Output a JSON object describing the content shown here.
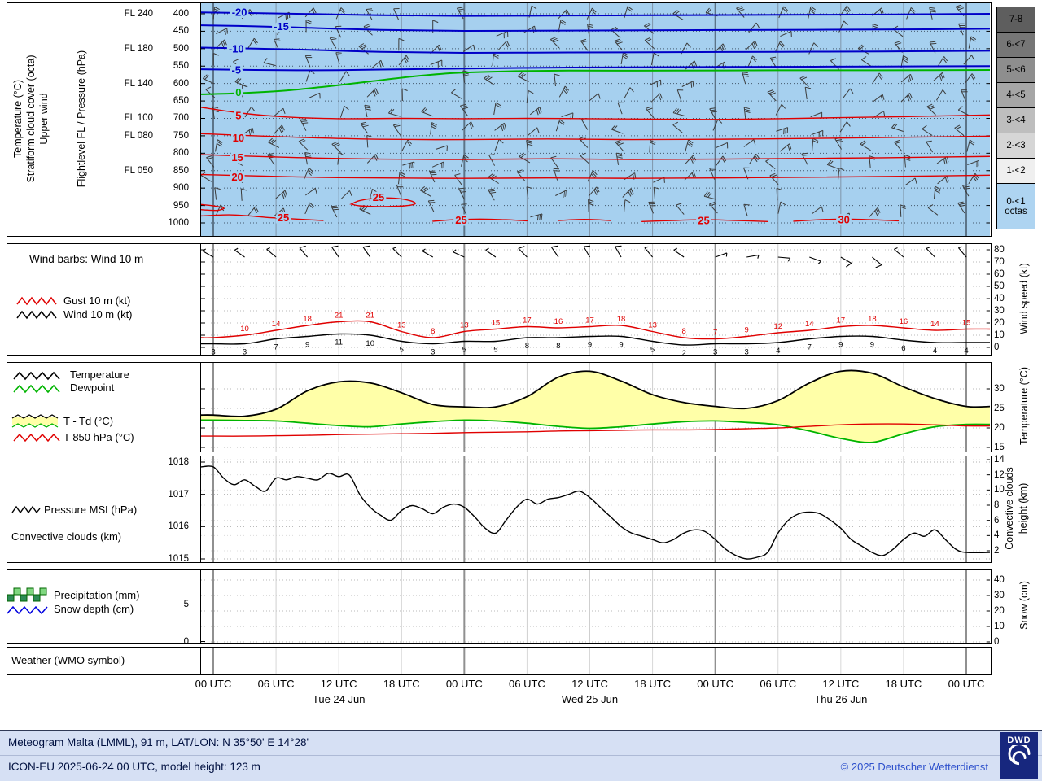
{
  "colors": {
    "plot_blue_bg": "#a6d0ef",
    "contour_blue": "#0000c8",
    "contour_green": "#00b400",
    "contour_red": "#e00000",
    "gust_red": "#e00000",
    "snow_blue": "#0000e0",
    "ttd_yellow": "#ffffa8",
    "footer_bg": "#d6e0f4",
    "copyright_blue": "#2d50cc",
    "dwd_navy": "#17277e"
  },
  "upper_panel": {
    "rotated_labels": [
      "Temperature (°C)",
      "Stratiform cloud cover (octa)",
      "Upper wind"
    ],
    "axis_label": "Flightlevel FL / Pressure (hPa)",
    "flight_levels": [
      {
        "label": "FL 240",
        "p": 400
      },
      {
        "label": "FL 180",
        "p": 500
      },
      {
        "label": "FL 140",
        "p": 600
      },
      {
        "label": "FL 100",
        "p": 700
      },
      {
        "label": "FL 080",
        "p": 750
      },
      {
        "label": "FL 050",
        "p": 850
      }
    ],
    "pressure_ticks": [
      400,
      450,
      500,
      550,
      600,
      650,
      700,
      750,
      800,
      850,
      900,
      950,
      1000
    ]
  },
  "octas_legend": {
    "unit": "octas",
    "cells": [
      {
        "label": "7-8",
        "color": "#5e5e5e"
      },
      {
        "label": "6-<7",
        "color": "#767676"
      },
      {
        "label": "5-<6",
        "color": "#8e8e8e"
      },
      {
        "label": "4-<5",
        "color": "#a6a6a6"
      },
      {
        "label": "3-<4",
        "color": "#bebebe"
      },
      {
        "label": "2-<3",
        "color": "#d6d6d6"
      },
      {
        "label": "1-<2",
        "color": "#efefef"
      },
      {
        "label": "0-<1",
        "color": "#aed4f1"
      }
    ]
  },
  "wind_panel": {
    "title": "Wind barbs: Wind 10 m",
    "legend": [
      {
        "label": "Gust 10 m (kt)",
        "color": "#e00000"
      },
      {
        "label": "Wind 10 m (kt)",
        "color": "#000000"
      }
    ],
    "axis_label": "Wind speed (kt)",
    "ticks": [
      80,
      70,
      60,
      50,
      40,
      30,
      20,
      10,
      0
    ]
  },
  "temp_panel": {
    "legend": [
      {
        "label": "Temperature",
        "color": "#000000"
      },
      {
        "label": "Dewpoint",
        "color": "#00b400"
      },
      {
        "label": "T - Td (°C)",
        "color": "#ffffa8"
      },
      {
        "label": "T 850 hPa (°C)",
        "color": "#e00000"
      }
    ],
    "axis_label": "Temperature (°C)",
    "ticks": [
      30,
      25,
      20,
      15
    ]
  },
  "pressure_panel": {
    "legend": [
      "Pressure MSL(hPa)",
      "Convective clouds (km)"
    ],
    "left_ticks": [
      1018,
      1017,
      1016,
      1015
    ],
    "axis_label_right_1": "Convective clouds",
    "axis_label_right_2": "height (km)",
    "right_ticks": [
      14,
      12,
      10,
      8,
      6,
      4,
      2
    ]
  },
  "precip_panel": {
    "legend": [
      {
        "label": "Precipitation (mm)"
      },
      {
        "label": "Snow depth (cm)"
      }
    ],
    "left_ticks": [
      5,
      0
    ],
    "axis_label": "Snow (cm)",
    "right_ticks": [
      40,
      30,
      20,
      10,
      0
    ]
  },
  "weather_panel": {
    "label": "Weather (WMO symbol)"
  },
  "time_axis": {
    "utc_labels": [
      "00 UTC",
      "06 UTC",
      "12 UTC",
      "18 UTC",
      "00 UTC",
      "06 UTC",
      "12 UTC",
      "18 UTC",
      "00 UTC",
      "06 UTC",
      "12 UTC",
      "18 UTC",
      "00 UTC"
    ],
    "day_labels": [
      {
        "label": "Tue 24 Jun",
        "t": 12
      },
      {
        "label": "Wed 25 Jun",
        "t": 36
      },
      {
        "label": "Thu 26 Jun",
        "t": 60
      }
    ]
  },
  "footer": {
    "line1": "Meteogram Malta (LMML), 91 m, LAT/LON: N 35°50' E 14°28'",
    "line2": "ICON-EU 2025-06-24 00 UTC, model height: 123 m",
    "copyright": "© 2025 Deutscher Wetterdienst",
    "logo_text": "DWD"
  },
  "chart_data": {
    "type": "meteogram",
    "time_range_hours": {
      "start": 0,
      "end": 72,
      "label_step": 6
    },
    "upper_air_contours": [
      {
        "label": "-20",
        "color": "#0000c8",
        "width": 2,
        "label_t": 2.5,
        "label_p": 397,
        "points": [
          [
            -1.2,
            396
          ],
          [
            4,
            398
          ],
          [
            10,
            401
          ],
          [
            16,
            404
          ],
          [
            24,
            406
          ],
          [
            34,
            405
          ],
          [
            44,
            404
          ],
          [
            54,
            403
          ],
          [
            64,
            402
          ],
          [
            74.6,
            400
          ]
        ]
      },
      {
        "label": "-15",
        "color": "#0000c8",
        "width": 2,
        "label_t": 6.5,
        "label_p": 437,
        "points": [
          [
            -1.2,
            433
          ],
          [
            4,
            436
          ],
          [
            10,
            441
          ],
          [
            16,
            446
          ],
          [
            24,
            449
          ],
          [
            34,
            448
          ],
          [
            44,
            447
          ],
          [
            54,
            446
          ],
          [
            64,
            445
          ],
          [
            74.6,
            443
          ]
        ]
      },
      {
        "label": "-10",
        "color": "#0000c8",
        "width": 2,
        "label_t": 2.2,
        "label_p": 501,
        "points": [
          [
            -1.2,
            497
          ],
          [
            4,
            500
          ],
          [
            10,
            504
          ],
          [
            16,
            509
          ],
          [
            24,
            512
          ],
          [
            34,
            511
          ],
          [
            44,
            510
          ],
          [
            54,
            509
          ],
          [
            64,
            508
          ],
          [
            74.6,
            506
          ]
        ]
      },
      {
        "label": "-5",
        "color": "#0000c8",
        "width": 2,
        "label_t": 2.2,
        "label_p": 562,
        "points": [
          [
            -1.2,
            559
          ],
          [
            4,
            561
          ],
          [
            10,
            562
          ],
          [
            16,
            560
          ],
          [
            24,
            557
          ],
          [
            34,
            554
          ],
          [
            44,
            553
          ],
          [
            54,
            552
          ],
          [
            64,
            551
          ],
          [
            74.6,
            550
          ]
        ]
      },
      {
        "label": "0",
        "color": "#00b400",
        "width": 2,
        "label_t": 2.4,
        "label_p": 626,
        "points": [
          [
            -1.2,
            631
          ],
          [
            3,
            627
          ],
          [
            7,
            620
          ],
          [
            11,
            608
          ],
          [
            15,
            594
          ],
          [
            19,
            580
          ],
          [
            23,
            570
          ],
          [
            28,
            565
          ],
          [
            34,
            563
          ],
          [
            44,
            563
          ],
          [
            54,
            562
          ],
          [
            64,
            562
          ],
          [
            74.6,
            561
          ]
        ]
      },
      {
        "label": "5",
        "color": "#e00000",
        "width": 1.4,
        "label_t": 2.4,
        "label_p": 693,
        "points": [
          [
            -1.2,
            668
          ],
          [
            3,
            686
          ],
          [
            7,
            696
          ],
          [
            12,
            701
          ],
          [
            18,
            700
          ],
          [
            24,
            701
          ],
          [
            30,
            700
          ],
          [
            36,
            701
          ],
          [
            42,
            702
          ],
          [
            48,
            703
          ],
          [
            54,
            701
          ],
          [
            60,
            698
          ],
          [
            66,
            695
          ],
          [
            74.6,
            690
          ]
        ]
      },
      {
        "label": "10",
        "color": "#e00000",
        "width": 1.4,
        "label_t": 2.4,
        "label_p": 757,
        "points": [
          [
            -1.2,
            744
          ],
          [
            4,
            750
          ],
          [
            10,
            756
          ],
          [
            16,
            760
          ],
          [
            24,
            761
          ],
          [
            32,
            759
          ],
          [
            40,
            761
          ],
          [
            48,
            760
          ],
          [
            56,
            758
          ],
          [
            64,
            755
          ],
          [
            74.6,
            751
          ]
        ]
      },
      {
        "label": "15",
        "color": "#e00000",
        "width": 1.4,
        "label_t": 2.3,
        "label_p": 813,
        "points": [
          [
            -1.2,
            804
          ],
          [
            4,
            809
          ],
          [
            10,
            814
          ],
          [
            16,
            817
          ],
          [
            24,
            818
          ],
          [
            32,
            816
          ],
          [
            40,
            818
          ],
          [
            48,
            817
          ],
          [
            56,
            815
          ],
          [
            64,
            813
          ],
          [
            74.6,
            809
          ]
        ]
      },
      {
        "label": "20",
        "color": "#e00000",
        "width": 1.4,
        "label_t": 2.3,
        "label_p": 869,
        "points": [
          [
            -1.2,
            861
          ],
          [
            4,
            865
          ],
          [
            10,
            869
          ],
          [
            16,
            871
          ],
          [
            24,
            872
          ],
          [
            32,
            871
          ],
          [
            40,
            872
          ],
          [
            48,
            871
          ],
          [
            56,
            869
          ],
          [
            64,
            867
          ],
          [
            74.6,
            863
          ]
        ]
      },
      {
        "label": "25",
        "color": "#e00000",
        "width": 1.4,
        "label_t": 6.7,
        "label_p": 986,
        "points": [
          [
            -1.2,
            980
          ],
          [
            1.5,
            977
          ],
          [
            3.5,
            980
          ],
          [
            5.5,
            985
          ],
          [
            8,
            989
          ],
          [
            10.5,
            993
          ]
        ]
      },
      {
        "label": "25",
        "color": "#e00000",
        "width": 1.4,
        "label_t": 15.8,
        "label_p": 928,
        "closed": true,
        "points": [
          [
            13.2,
            946
          ],
          [
            14,
            936
          ],
          [
            15.5,
            929
          ],
          [
            17.3,
            929
          ],
          [
            18.8,
            936
          ],
          [
            19.3,
            945
          ],
          [
            18.3,
            951
          ],
          [
            16,
            953
          ],
          [
            14,
            951
          ],
          [
            13.2,
            946
          ]
        ]
      },
      {
        "label": "25",
        "color": "#e00000",
        "width": 1.4,
        "label_t": 23.7,
        "label_p": 993,
        "points": [
          [
            21,
            995
          ],
          [
            23,
            991
          ],
          [
            25.5,
            989
          ],
          [
            28,
            991
          ],
          [
            30,
            994
          ]
        ]
      },
      {
        "label": "",
        "color": "#e00000",
        "width": 1.4,
        "label_t": 0,
        "label_p": 0,
        "points": [
          [
            33,
            993
          ],
          [
            35.5,
            990
          ],
          [
            38,
            993
          ]
        ]
      },
      {
        "label": "25",
        "color": "#e00000",
        "width": 1.4,
        "label_t": 46.9,
        "label_p": 994,
        "points": [
          [
            41,
            996
          ],
          [
            44,
            993
          ],
          [
            47,
            991
          ],
          [
            50,
            993
          ],
          [
            53,
            996
          ]
        ]
      },
      {
        "label": "30",
        "color": "#e00000",
        "width": 1.4,
        "label_t": 60.3,
        "label_p": 992,
        "points": [
          [
            55.5,
            995
          ],
          [
            58,
            991
          ],
          [
            60.5,
            989
          ],
          [
            63,
            991
          ],
          [
            65.5,
            994
          ]
        ]
      },
      {
        "label": "",
        "color": "#e00000",
        "width": 1.4,
        "label_t": 0,
        "label_p": 0,
        "points": [
          [
            -1.2,
            947
          ],
          [
            0,
            951
          ],
          [
            1,
            957
          ],
          [
            0.4,
            964
          ],
          [
            -1.2,
            962
          ]
        ]
      }
    ],
    "upper_barbs": {
      "note": "decorative barb grid, values not readable at source resolution",
      "t_step": 3,
      "p_levels": [
        413,
        460,
        507,
        554,
        601,
        648,
        695,
        742,
        789,
        836,
        883,
        930,
        977
      ],
      "seed": 11
    },
    "wind10m": {
      "x_step_hours": 3,
      "gust_kt": [
        8,
        10,
        14,
        18,
        21,
        21,
        13,
        8,
        13,
        15,
        17,
        16,
        17,
        18,
        13,
        8,
        7,
        9,
        12,
        14,
        17,
        18,
        16,
        14,
        15
      ],
      "wind_kt": [
        3,
        3,
        7,
        9,
        11,
        10,
        5,
        3,
        5,
        5,
        8,
        8,
        9,
        9,
        5,
        2,
        3,
        3,
        4,
        7,
        9,
        9,
        6,
        4,
        4
      ],
      "barb_dirs_deg": [
        300,
        305,
        310,
        320,
        325,
        325,
        315,
        300,
        295,
        305,
        315,
        325,
        330,
        330,
        320,
        305,
        70,
        80,
        95,
        110,
        120,
        130,
        310,
        315,
        320
      ]
    },
    "surface": {
      "x_step_hours": 3,
      "temperature_c": [
        23.3,
        23,
        24.8,
        29.5,
        31.8,
        31.5,
        29,
        26,
        25.4,
        25.4,
        28,
        33,
        34.5,
        32,
        28.5,
        26.5,
        25.5,
        25,
        27,
        31.5,
        34.5,
        34,
        30.5,
        27.5,
        25.5
      ],
      "dewpoint_c": [
        22,
        21.9,
        21.8,
        21.2,
        20.6,
        20.3,
        21,
        21.6,
        22,
        21.8,
        21.2,
        20.4,
        19.9,
        20.3,
        21,
        21.6,
        21.8,
        21.4,
        20.8,
        19.2,
        17.3,
        16.3,
        18.5,
        20.3,
        20.9
      ],
      "t850_c": [
        17.9,
        17.9,
        18,
        18.1,
        18.3,
        18.4,
        18.5,
        18.6,
        18.8,
        18.9,
        19,
        19.2,
        19.3,
        19.4,
        19.5,
        19.5,
        19.6,
        19.8,
        20,
        20.4,
        20.8,
        21,
        21,
        20.8,
        20.5
      ]
    },
    "pressure_msl": {
      "x_step_hours": 1,
      "hpa": [
        1017.85,
        1017.5,
        1017.3,
        1017.45,
        1017.25,
        1017.1,
        1017.5,
        1017.45,
        1017.55,
        1017.5,
        1017.45,
        1017.65,
        1017.55,
        1017.6,
        1017.0,
        1016.6,
        1016.35,
        1016.2,
        1016.5,
        1016.65,
        1016.55,
        1016.4,
        1016.6,
        1016.7,
        1016.6,
        1016.3,
        1015.95,
        1015.8,
        1016.2,
        1016.6,
        1016.85,
        1016.7,
        1016.85,
        1016.9,
        1017.0,
        1017.1,
        1016.9,
        1016.6,
        1016.3,
        1016.0,
        1015.8,
        1015.7,
        1015.6,
        1015.5,
        1015.6,
        1015.8,
        1015.9,
        1015.85,
        1015.6,
        1015.3,
        1015.1,
        1015.0,
        1015.05,
        1015.2,
        1015.8,
        1016.2,
        1016.4,
        1016.45,
        1016.4,
        1016.2,
        1015.95,
        1015.6,
        1015.4,
        1015.2,
        1015.1,
        1015.3,
        1015.6,
        1015.8,
        1015.7,
        1015.9,
        1015.6,
        1015.3,
        1015.2
      ]
    },
    "precipitation_mm": [],
    "snow_depth_cm": [],
    "weather_symbols": []
  }
}
